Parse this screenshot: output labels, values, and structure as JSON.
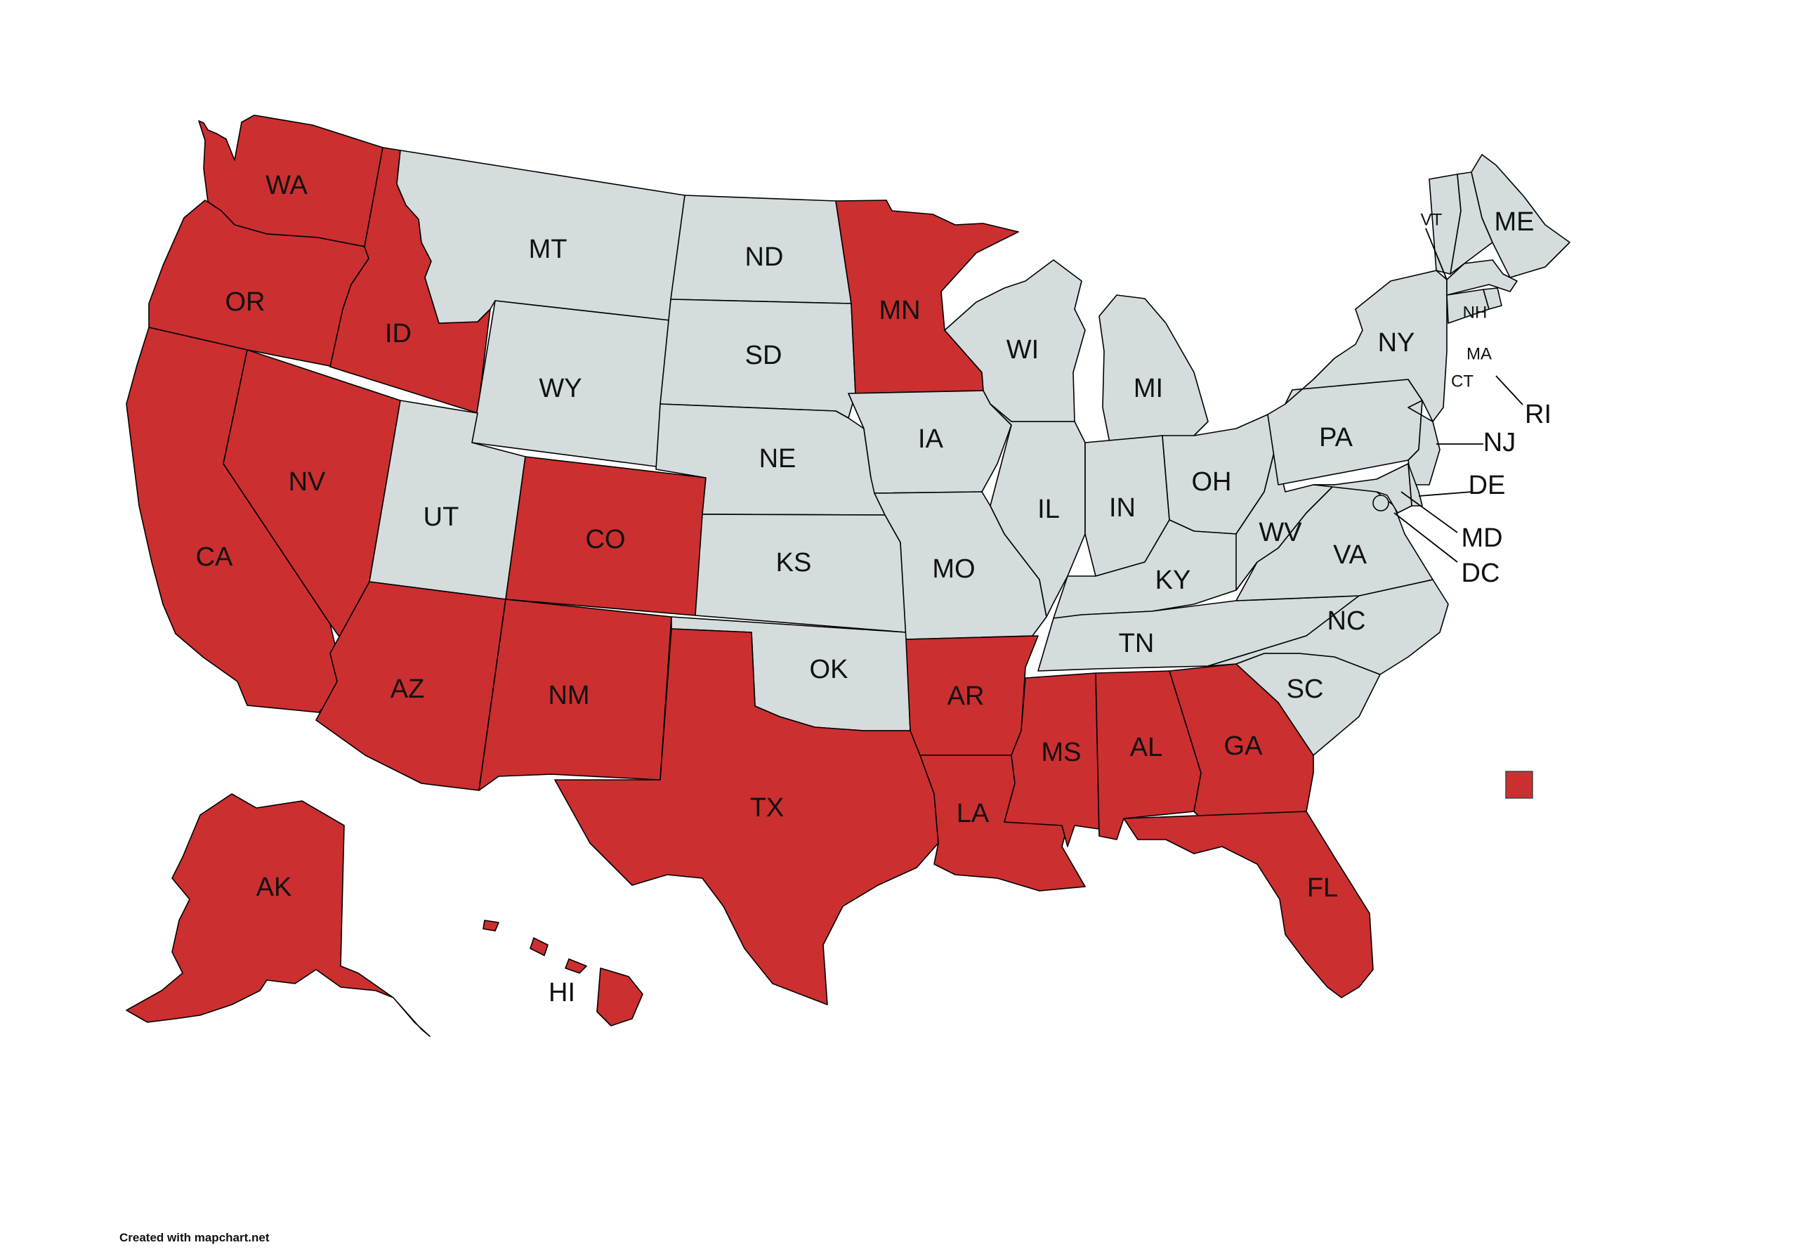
{
  "colors": {
    "highlighted": "#cc2f2f",
    "other": "#d4dcde",
    "border": "#000000"
  },
  "credit": "Created with mapchart.net",
  "legend": {
    "swatch_color": "#cc2f2f"
  },
  "states": [
    {
      "abbr": "WA",
      "highlighted": true
    },
    {
      "abbr": "OR",
      "highlighted": true
    },
    {
      "abbr": "CA",
      "highlighted": true
    },
    {
      "abbr": "NV",
      "highlighted": true
    },
    {
      "abbr": "ID",
      "highlighted": true
    },
    {
      "abbr": "MT",
      "highlighted": false
    },
    {
      "abbr": "WY",
      "highlighted": false
    },
    {
      "abbr": "UT",
      "highlighted": false
    },
    {
      "abbr": "AZ",
      "highlighted": true
    },
    {
      "abbr": "CO",
      "highlighted": true
    },
    {
      "abbr": "NM",
      "highlighted": true
    },
    {
      "abbr": "ND",
      "highlighted": false
    },
    {
      "abbr": "SD",
      "highlighted": false
    },
    {
      "abbr": "NE",
      "highlighted": false
    },
    {
      "abbr": "KS",
      "highlighted": false
    },
    {
      "abbr": "OK",
      "highlighted": false
    },
    {
      "abbr": "TX",
      "highlighted": true
    },
    {
      "abbr": "MN",
      "highlighted": true
    },
    {
      "abbr": "IA",
      "highlighted": false
    },
    {
      "abbr": "MO",
      "highlighted": false
    },
    {
      "abbr": "AR",
      "highlighted": true
    },
    {
      "abbr": "LA",
      "highlighted": true
    },
    {
      "abbr": "WI",
      "highlighted": false
    },
    {
      "abbr": "IL",
      "highlighted": false
    },
    {
      "abbr": "MI",
      "highlighted": false
    },
    {
      "abbr": "IN",
      "highlighted": false
    },
    {
      "abbr": "OH",
      "highlighted": false
    },
    {
      "abbr": "KY",
      "highlighted": false
    },
    {
      "abbr": "TN",
      "highlighted": false
    },
    {
      "abbr": "MS",
      "highlighted": true
    },
    {
      "abbr": "AL",
      "highlighted": true
    },
    {
      "abbr": "GA",
      "highlighted": true
    },
    {
      "abbr": "FL",
      "highlighted": true
    },
    {
      "abbr": "SC",
      "highlighted": false
    },
    {
      "abbr": "NC",
      "highlighted": false
    },
    {
      "abbr": "VA",
      "highlighted": false
    },
    {
      "abbr": "WV",
      "highlighted": false
    },
    {
      "abbr": "PA",
      "highlighted": false
    },
    {
      "abbr": "NY",
      "highlighted": false
    },
    {
      "abbr": "NJ",
      "highlighted": false
    },
    {
      "abbr": "DE",
      "highlighted": false
    },
    {
      "abbr": "MD",
      "highlighted": false
    },
    {
      "abbr": "DC",
      "highlighted": false
    },
    {
      "abbr": "VT",
      "highlighted": false
    },
    {
      "abbr": "NH",
      "highlighted": false
    },
    {
      "abbr": "ME",
      "highlighted": false
    },
    {
      "abbr": "MA",
      "highlighted": false
    },
    {
      "abbr": "CT",
      "highlighted": false
    },
    {
      "abbr": "RI",
      "highlighted": false
    },
    {
      "abbr": "AK",
      "highlighted": true
    },
    {
      "abbr": "HI",
      "highlighted": true
    }
  ]
}
